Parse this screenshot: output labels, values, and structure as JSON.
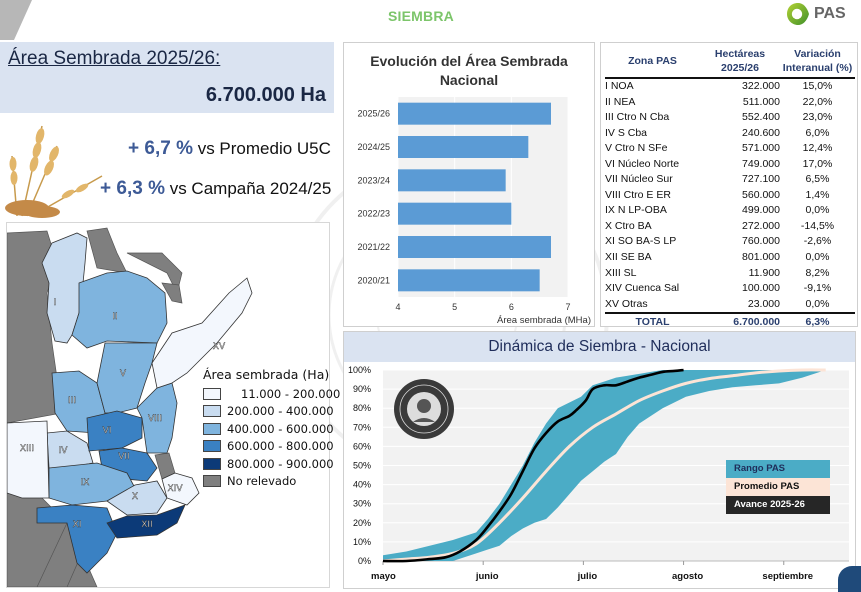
{
  "header": {
    "section_title": "SIEMBRA",
    "logo_text": "PAS",
    "logo_icon": "pas-leaf-logo-icon",
    "accent_color": "#7cc56a"
  },
  "area_summary": {
    "title": "Área Sembrada 2025/26:",
    "value": "6.700.000 Ha",
    "stats": [
      {
        "value": "+ 6,7 %",
        "label": "vs Promedio U5C"
      },
      {
        "value": "+ 6,3 %",
        "label": "vs Campaña 2024/25"
      }
    ],
    "image": "wheat-image"
  },
  "map": {
    "legend_title": "Área sembrada (Ha)",
    "legend": [
      {
        "label": "11.000 - 200.000",
        "color": "#f3f7fd"
      },
      {
        "label": "200.000 - 400.000",
        "color": "#c9dcf0"
      },
      {
        "label": "400.000 - 600.000",
        "color": "#7fb4de"
      },
      {
        "label": "600.000 - 800.000",
        "color": "#3a81c3"
      },
      {
        "label": "800.000 - 900.000",
        "color": "#0c3a78"
      },
      {
        "label": "No relevado",
        "color": "#7f7f7f"
      }
    ],
    "zones": [
      {
        "label": "I",
        "class": 1
      },
      {
        "label": "II",
        "class": 2
      },
      {
        "label": "III",
        "class": 2
      },
      {
        "label": "IV",
        "class": 1
      },
      {
        "label": "V",
        "class": 2
      },
      {
        "label": "VI",
        "class": 3
      },
      {
        "label": "VII",
        "class": 3
      },
      {
        "label": "VIII",
        "class": 2
      },
      {
        "label": "IX",
        "class": 2
      },
      {
        "label": "X",
        "class": 1
      },
      {
        "label": "XI",
        "class": 3
      },
      {
        "label": "XII",
        "class": 4
      },
      {
        "label": "XIII",
        "class": 0
      },
      {
        "label": "XIV",
        "class": 0
      },
      {
        "label": "XV",
        "class": 0
      }
    ]
  },
  "zona_table": {
    "headers": {
      "zona": "Zona PAS",
      "hectareas_1": "Hectáreas",
      "hectareas_2": "2025/26",
      "variacion_1": "Variación",
      "variacion_2": "Interanual (%)"
    },
    "rows": [
      {
        "zona": "I NOA",
        "ha": "322.000",
        "var": "15,0%"
      },
      {
        "zona": "II NEA",
        "ha": "511.000",
        "var": "22,0%"
      },
      {
        "zona": "III Ctro N Cba",
        "ha": "552.400",
        "var": "23,0%"
      },
      {
        "zona": "IV S Cba",
        "ha": "240.600",
        "var": "6,0%"
      },
      {
        "zona": "V Ctro N SFe",
        "ha": "571.000",
        "var": "12,4%"
      },
      {
        "zona": "VI Núcleo Norte",
        "ha": "749.000",
        "var": "17,0%"
      },
      {
        "zona": "VII Núcleo Sur",
        "ha": "727.100",
        "var": "6,5%"
      },
      {
        "zona": "VIII Ctro E ER",
        "ha": "560.000",
        "var": "1,4%"
      },
      {
        "zona": "IX N LP-OBA",
        "ha": "499.000",
        "var": "0,0%"
      },
      {
        "zona": "X Ctro BA",
        "ha": "272.000",
        "var": "-14,5%"
      },
      {
        "zona": "XI SO BA-S LP",
        "ha": "760.000",
        "var": "-2,6%"
      },
      {
        "zona": "XII SE BA",
        "ha": "801.000",
        "var": "0,0%"
      },
      {
        "zona": "XIII SL",
        "ha": "11.900",
        "var": "8,2%"
      },
      {
        "zona": "XIV Cuenca Sal",
        "ha": "100.000",
        "var": "-9,1%"
      },
      {
        "zona": "XV Otras",
        "ha": "23.000",
        "var": "0,0%"
      }
    ],
    "total": {
      "zona": "TOTAL",
      "ha": "6.700.000",
      "var": "6,3%"
    }
  },
  "chart_data": [
    {
      "type": "bar",
      "orientation": "horizontal",
      "title": "Evolución del Área Sembrada Nacional",
      "categories": [
        "2025/26",
        "2024/25",
        "2023/24",
        "2022/23",
        "2021/22",
        "2020/21"
      ],
      "values": [
        6.7,
        6.3,
        5.9,
        6.0,
        6.7,
        6.5
      ],
      "xlabel": "Área sembrada (MHa)",
      "ylabel": "",
      "xlim": [
        4,
        7
      ],
      "xticks": [
        4,
        5,
        6,
        7
      ],
      "bar_color": "#5b9bd5",
      "grid": true
    },
    {
      "type": "area",
      "title": "Dinámica de Siembra - Nacional",
      "x_labels": [
        "mayo",
        "junio",
        "julio",
        "agosto",
        "septiembre"
      ],
      "x_ticks_weeks": [
        0,
        4.3,
        8.6,
        12.9,
        17.2
      ],
      "x_range_weeks": [
        0,
        20
      ],
      "ylim": [
        0,
        100
      ],
      "yticks": [
        "0%",
        "10%",
        "20%",
        "30%",
        "40%",
        "50%",
        "60%",
        "70%",
        "80%",
        "90%",
        "100%"
      ],
      "grid": true,
      "legend_position": "right",
      "series": [
        {
          "name": "Rango PAS",
          "color": "#4bacc6",
          "x": [
            0,
            1,
            2,
            3,
            4,
            4.5,
            5,
            5.5,
            6,
            6.5,
            7,
            7.5,
            8,
            8.5,
            9,
            9.5,
            10,
            10.5,
            11,
            11.5,
            12,
            12.5,
            13,
            14,
            15,
            16,
            17,
            18,
            19
          ],
          "upper": [
            3,
            5,
            8,
            11,
            15,
            22,
            30,
            40,
            50,
            62,
            72,
            80,
            83,
            86,
            92,
            94,
            96,
            97,
            98,
            99,
            100,
            100,
            100,
            100,
            100,
            100,
            100,
            100,
            100
          ],
          "lower": [
            0,
            0,
            0,
            0,
            4,
            6,
            8,
            13,
            17,
            20,
            22,
            28,
            35,
            42,
            47,
            52,
            56,
            65,
            72,
            76,
            80,
            83,
            86,
            89,
            91,
            92,
            93,
            96,
            100
          ]
        },
        {
          "name": "Promedio PAS",
          "color": "#fce4d6",
          "x": [
            0,
            1,
            2,
            3,
            4,
            5,
            6,
            7,
            8,
            9,
            10,
            11,
            12,
            13,
            14,
            15,
            16,
            17,
            18,
            19
          ],
          "values": [
            0,
            1,
            2,
            4,
            9,
            20,
            33,
            47,
            60,
            70,
            77,
            84,
            89,
            93,
            95.5,
            97,
            98.5,
            99.5,
            100,
            100
          ]
        },
        {
          "name": "Avance 2025-26",
          "color": "#000000",
          "x": [
            0,
            1,
            2,
            2.7,
            3.3,
            4,
            4.5,
            5,
            5.5,
            6,
            6.5,
            7,
            7.5,
            8,
            8.3,
            8.7,
            9,
            9.5,
            10,
            10.5,
            11,
            11.5,
            12,
            12.5,
            12.9
          ],
          "values": [
            0,
            0,
            1,
            2,
            5,
            11,
            18,
            26,
            35,
            47,
            59,
            67,
            73,
            76,
            79,
            84,
            90,
            92,
            92,
            94,
            96,
            97.5,
            99,
            99.5,
            100
          ]
        }
      ]
    }
  ]
}
